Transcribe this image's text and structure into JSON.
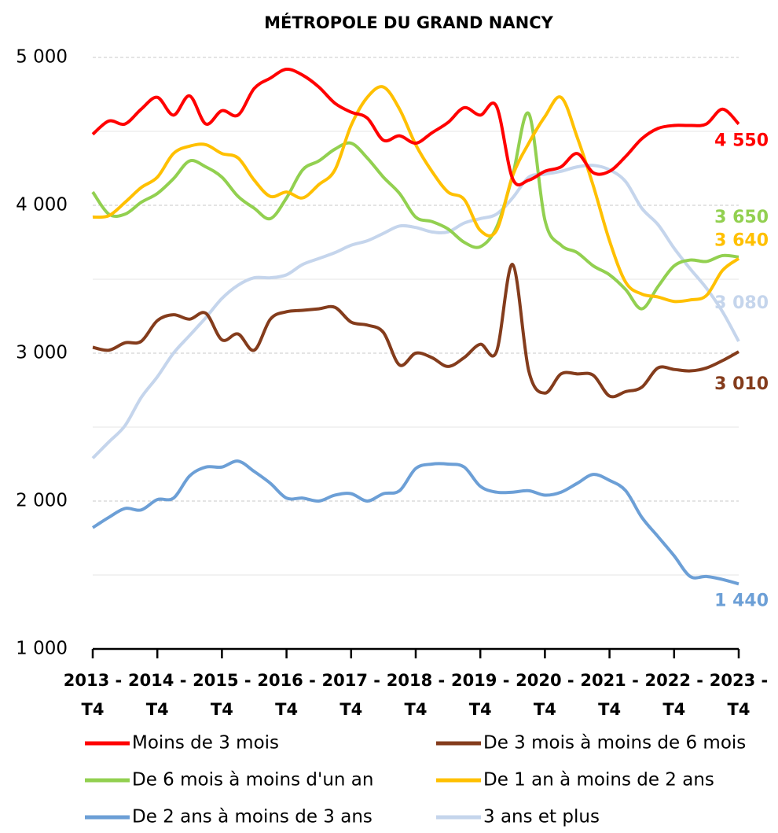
{
  "chart_data": {
    "type": "line",
    "title": "MÉTROPOLE DU GRAND NANCY",
    "categories": [
      "2013 - T4",
      null,
      null,
      null,
      "2014 - T4",
      null,
      null,
      null,
      "2015 - T4",
      null,
      null,
      null,
      "2016 - T4",
      null,
      null,
      null,
      "2017 - T4",
      null,
      null,
      null,
      "2018 - T4",
      null,
      null,
      null,
      "2019 - T4",
      null,
      null,
      null,
      "2020 - T4",
      null,
      null,
      null,
      "2021 - T4",
      null,
      null,
      null,
      "2022 - T4",
      null,
      null,
      null,
      "2023 - T4"
    ],
    "ylim": [
      1000,
      5000
    ],
    "yticks": [
      {
        "value": 1000,
        "label": "1 000"
      },
      {
        "value": 2000,
        "label": "2 000"
      },
      {
        "value": 3000,
        "label": "3 000"
      },
      {
        "value": 4000,
        "label": "4 000"
      },
      {
        "value": 5000,
        "label": "5 000"
      }
    ],
    "minor_grid": [
      1500,
      2500,
      3500,
      4500
    ],
    "grid": true,
    "series": [
      {
        "name": "Moins de 3 mois",
        "color": "#ff0000",
        "values": [
          4480,
          4570,
          4550,
          4650,
          4730,
          4610,
          4740,
          4550,
          4640,
          4610,
          4790,
          4860,
          4920,
          4880,
          4800,
          4690,
          4630,
          4590,
          4440,
          4470,
          4420,
          4490,
          4560,
          4660,
          4610,
          4670,
          4180,
          4170,
          4230,
          4260,
          4350,
          4220,
          4230,
          4330,
          4450,
          4520,
          4540,
          4540,
          4550,
          4650,
          4550
        ],
        "value_labels": [
          null,
          null,
          null,
          null,
          null,
          null,
          null,
          null,
          null,
          null,
          null,
          null,
          null,
          null,
          null,
          null,
          null,
          null,
          null,
          null,
          null,
          null,
          null,
          null,
          null,
          null,
          null,
          null,
          null,
          null,
          null,
          null,
          null,
          null,
          null,
          null,
          null,
          null,
          null,
          null,
          "4 550"
        ]
      },
      {
        "name": "De 3 mois à moins de 6 mois",
        "color": "#843c1c",
        "values": [
          3040,
          3020,
          3070,
          3080,
          3220,
          3260,
          3230,
          3270,
          3090,
          3130,
          3020,
          3230,
          3280,
          3290,
          3300,
          3310,
          3210,
          3190,
          3140,
          2920,
          3000,
          2970,
          2910,
          2970,
          3060,
          3010,
          3600,
          2880,
          2730,
          2860,
          2860,
          2850,
          2710,
          2740,
          2770,
          2900,
          2890,
          2880,
          2900,
          2950,
          3010
        ],
        "value_labels": [
          null,
          null,
          null,
          null,
          null,
          null,
          null,
          null,
          null,
          null,
          null,
          null,
          null,
          null,
          null,
          null,
          null,
          null,
          null,
          null,
          null,
          null,
          null,
          null,
          null,
          null,
          null,
          null,
          null,
          null,
          null,
          null,
          null,
          null,
          null,
          null,
          null,
          null,
          null,
          null,
          "3 010"
        ]
      },
      {
        "name": "De 6 mois à moins d'un an",
        "color": "#92d050",
        "values": [
          4090,
          3940,
          3940,
          4020,
          4080,
          4180,
          4300,
          4260,
          4190,
          4060,
          3980,
          3910,
          4050,
          4240,
          4300,
          4380,
          4420,
          4320,
          4190,
          4080,
          3920,
          3890,
          3840,
          3750,
          3720,
          3850,
          4200,
          4620,
          3900,
          3730,
          3680,
          3590,
          3530,
          3430,
          3300,
          3450,
          3590,
          3630,
          3620,
          3660,
          3650
        ],
        "value_labels": [
          null,
          null,
          null,
          null,
          null,
          null,
          null,
          null,
          null,
          null,
          null,
          null,
          null,
          null,
          null,
          null,
          null,
          null,
          null,
          null,
          null,
          null,
          null,
          null,
          null,
          null,
          null,
          null,
          null,
          null,
          null,
          null,
          null,
          null,
          null,
          null,
          null,
          null,
          null,
          null,
          "3 650"
        ]
      },
      {
        "name": "De 1 an à moins de 2 ans",
        "color": "#ffc000",
        "values": [
          3920,
          3930,
          4020,
          4120,
          4190,
          4350,
          4400,
          4410,
          4350,
          4320,
          4170,
          4060,
          4090,
          4050,
          4140,
          4240,
          4540,
          4730,
          4800,
          4650,
          4410,
          4230,
          4090,
          4040,
          3830,
          3830,
          4200,
          4420,
          4600,
          4730,
          4460,
          4130,
          3760,
          3480,
          3400,
          3380,
          3350,
          3360,
          3390,
          3560,
          3640
        ],
        "value_labels": [
          null,
          null,
          null,
          null,
          null,
          null,
          null,
          null,
          null,
          null,
          null,
          null,
          null,
          null,
          null,
          null,
          null,
          null,
          null,
          null,
          null,
          null,
          null,
          null,
          null,
          null,
          null,
          null,
          null,
          null,
          null,
          null,
          null,
          null,
          null,
          null,
          null,
          null,
          null,
          null,
          "3 640"
        ]
      },
      {
        "name": "De 2 ans à moins de 3 ans",
        "color": "#6c9fd6",
        "values": [
          1820,
          1890,
          1950,
          1940,
          2010,
          2020,
          2170,
          2230,
          2230,
          2270,
          2200,
          2120,
          2020,
          2020,
          2000,
          2040,
          2050,
          2000,
          2050,
          2070,
          2220,
          2250,
          2250,
          2230,
          2100,
          2060,
          2060,
          2070,
          2040,
          2060,
          2120,
          2180,
          2140,
          2070,
          1890,
          1760,
          1630,
          1490,
          1490,
          1470,
          1440
        ],
        "value_labels": [
          null,
          null,
          null,
          null,
          null,
          null,
          null,
          null,
          null,
          null,
          null,
          null,
          null,
          null,
          null,
          null,
          null,
          null,
          null,
          null,
          null,
          null,
          null,
          null,
          null,
          null,
          null,
          null,
          null,
          null,
          null,
          null,
          null,
          null,
          null,
          null,
          null,
          null,
          null,
          null,
          "1 440"
        ]
      },
      {
        "name": "3 ans et plus",
        "color": "#c5d5ec",
        "values": [
          2290,
          2400,
          2510,
          2700,
          2840,
          3000,
          3120,
          3240,
          3370,
          3460,
          3510,
          3510,
          3530,
          3600,
          3640,
          3680,
          3730,
          3760,
          3810,
          3860,
          3850,
          3820,
          3820,
          3880,
          3910,
          3940,
          4050,
          4190,
          4210,
          4230,
          4260,
          4270,
          4240,
          4160,
          3980,
          3870,
          3710,
          3570,
          3440,
          3280,
          3080
        ],
        "value_labels": [
          null,
          null,
          null,
          null,
          null,
          null,
          null,
          null,
          null,
          null,
          null,
          null,
          null,
          null,
          null,
          null,
          null,
          null,
          null,
          null,
          null,
          null,
          null,
          null,
          null,
          null,
          null,
          null,
          null,
          null,
          null,
          null,
          null,
          null,
          null,
          null,
          null,
          null,
          null,
          null,
          "3 080"
        ]
      }
    ]
  }
}
